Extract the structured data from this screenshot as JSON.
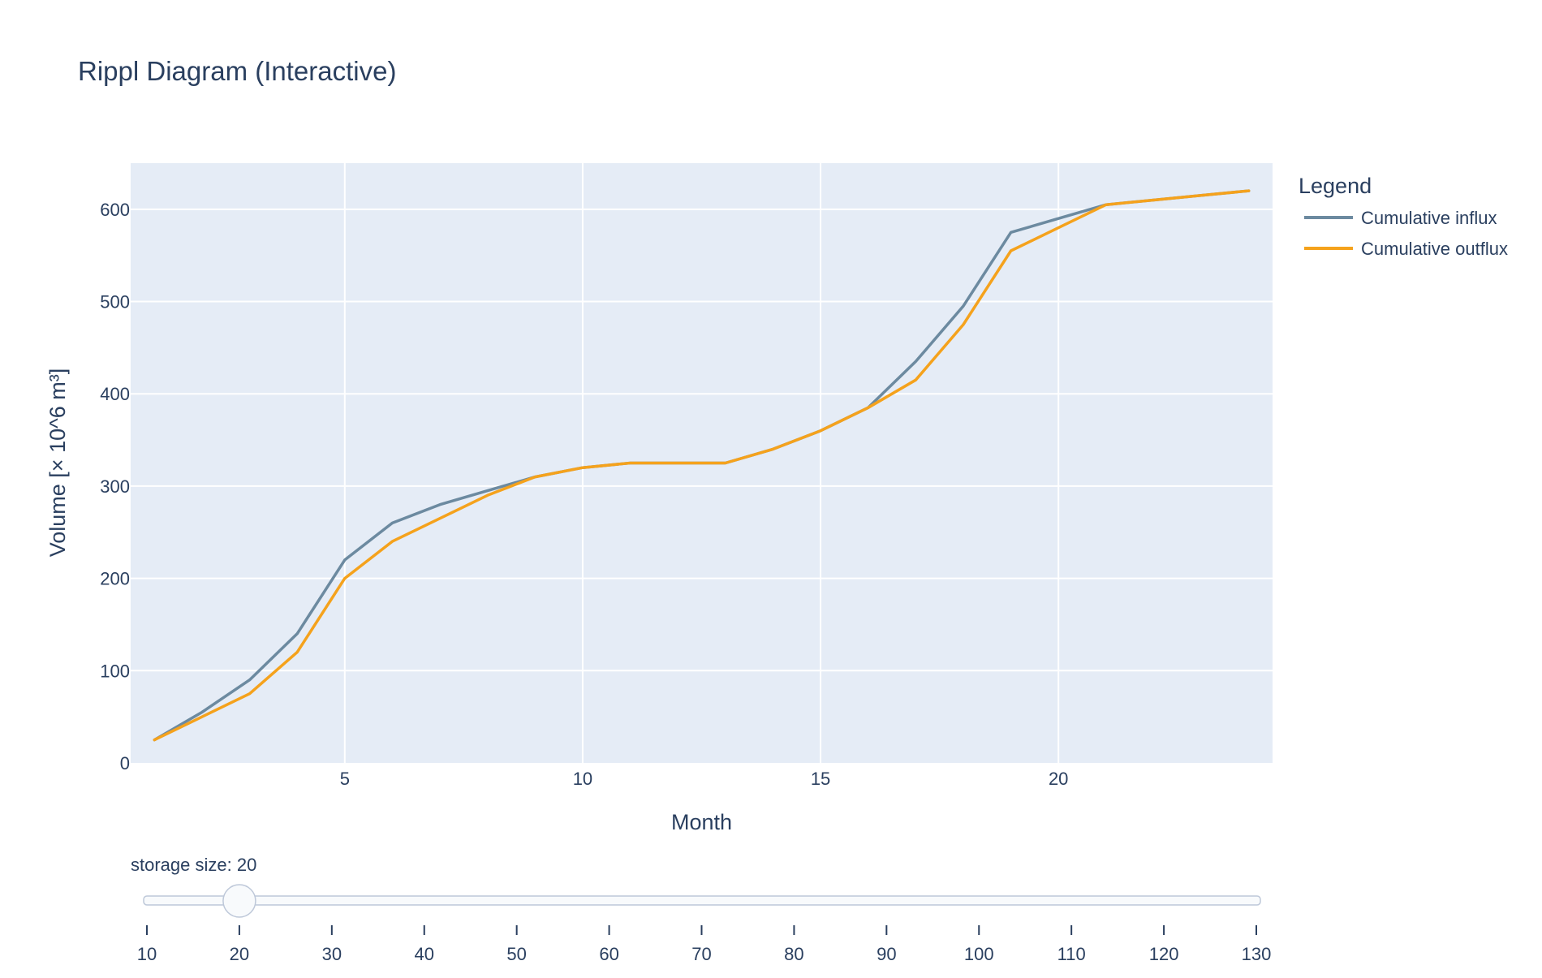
{
  "chart_data": {
    "type": "line",
    "title": "Rippl Diagram (Interactive)",
    "xlabel": "Month",
    "ylabel": "Volume [× 10^6 m³]",
    "xlim": [
      0.5,
      24.5
    ],
    "ylim": [
      0,
      650
    ],
    "x_ticks": [
      5,
      10,
      15,
      20
    ],
    "y_ticks": [
      0,
      100,
      200,
      300,
      400,
      500,
      600
    ],
    "grid": true,
    "legend": {
      "title": "Legend",
      "placement": "right"
    },
    "series": [
      {
        "name": "Cumulative influx",
        "color": "#6c8aa0",
        "x": [
          1,
          2,
          3,
          4,
          5,
          6,
          7,
          8,
          9,
          10,
          11,
          12,
          13,
          14,
          15,
          16,
          17,
          18,
          19,
          20,
          21,
          22,
          23,
          24
        ],
        "y": [
          25,
          55,
          90,
          140,
          220,
          260,
          280,
          295,
          310,
          320,
          325,
          325,
          325,
          340,
          360,
          385,
          435,
          495,
          575,
          590,
          605,
          610,
          615,
          620
        ]
      },
      {
        "name": "Cumulative outflux",
        "color": "#f5a21c",
        "x": [
          1,
          2,
          3,
          4,
          5,
          6,
          7,
          8,
          9,
          10,
          11,
          12,
          13,
          14,
          15,
          16,
          17,
          18,
          19,
          20,
          21,
          22,
          23,
          24
        ],
        "y": [
          25,
          50,
          75,
          120,
          200,
          240,
          265,
          290,
          310,
          320,
          325,
          325,
          325,
          340,
          360,
          385,
          415,
          475,
          555,
          580,
          605,
          610,
          615,
          620
        ]
      }
    ]
  },
  "slider": {
    "label": "storage size: 20",
    "value": 20,
    "min": 10,
    "max": 130,
    "ticks": [
      10,
      20,
      30,
      40,
      50,
      60,
      70,
      80,
      90,
      100,
      110,
      120,
      130
    ]
  },
  "colors": {
    "plot_background": "#e5ecf6",
    "grid": "#ffffff",
    "text": "#2a3f5f"
  }
}
